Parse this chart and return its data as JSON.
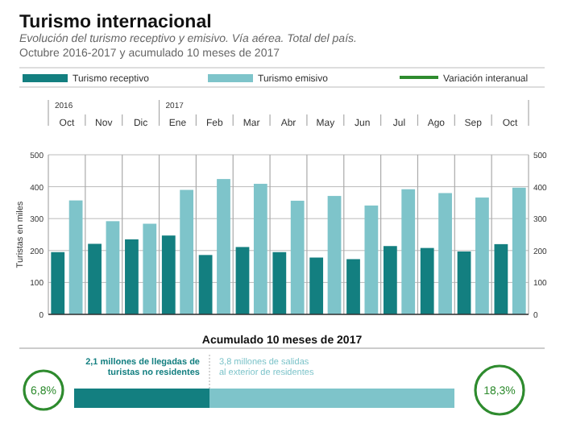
{
  "chart_data": [
    {
      "type": "bar",
      "title": "Turismo internacional",
      "subtitle": "Evolución del turismo receptivo y emisivo. Vía aérea. Total del país.\nOctubre 2016-2017 y acumulado 10 meses de 2017",
      "ylabel": "Turistas en miles",
      "categories": [
        "Oct",
        "Nov",
        "Dic",
        "Ene",
        "Feb",
        "Mar",
        "Abr",
        "May",
        "Jun",
        "Jul",
        "Ago",
        "Sep",
        "Oct"
      ],
      "series": [
        {
          "name": "Turismo receptivo",
          "color": "#137f80",
          "values": [
            195,
            221,
            235,
            247,
            186,
            211,
            195,
            178,
            173,
            214,
            208,
            197,
            220
          ]
        },
        {
          "name": "Turismo emisivo",
          "color": "#7ec4ca",
          "values": [
            357,
            292,
            284,
            390,
            424,
            409,
            356,
            371,
            341,
            392,
            380,
            366,
            397
          ]
        },
        {
          "name": "Variación interanual",
          "type": "line",
          "color": "#2e8b2e",
          "values": [
            null,
            null,
            null,
            null,
            null,
            null,
            null,
            null,
            null,
            null,
            null,
            null,
            null
          ]
        }
      ],
      "annotations": [
        "2016",
        "2017"
      ],
      "ylim": [
        0,
        500
      ],
      "yticks": [
        0,
        100,
        200,
        300,
        400,
        500
      ],
      "y2lim": [
        0,
        500
      ],
      "y2ticks": [
        0,
        100,
        200,
        300,
        400,
        500
      ],
      "grid": true,
      "legend": "top"
    },
    {
      "type": "bar",
      "orientation": "horizontal",
      "stacked": true,
      "title": "Acumulado 10 meses de 2017",
      "categories": [
        null
      ],
      "series": [
        {
          "color": "#137f80",
          "values": [
            2.1
          ],
          "value_labels": [
            "2,1 millones de llegadas de turistas no residentes"
          ]
        },
        {
          "color": "#7ec4ca",
          "values": [
            3.8
          ],
          "value_labels": [
            "3,8 millones de salidas al exterior de residentes"
          ]
        }
      ],
      "annotations": [
        "6,8%",
        "18,3%"
      ]
    }
  ]
}
